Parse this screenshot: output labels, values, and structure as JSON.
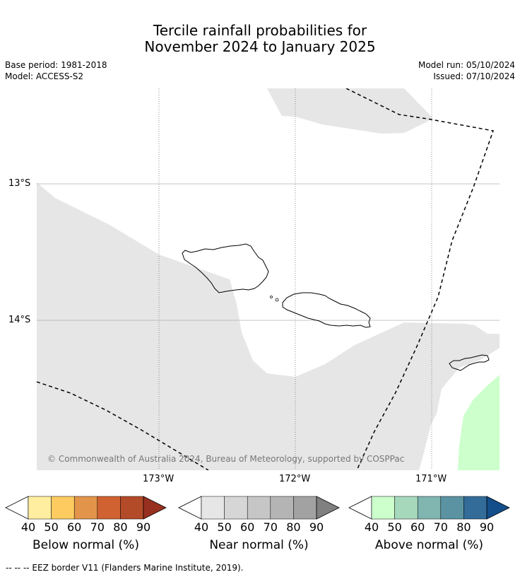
{
  "title": {
    "line1": "Tercile rainfall probabilities for",
    "line2": "November 2024 to January 2025"
  },
  "meta": {
    "base_period": "Base period: 1981-2018",
    "model": "Model: ACCESS-S2",
    "model_run": "Model run: 05/10/2024",
    "issued": "Issued: 07/10/2024"
  },
  "map": {
    "lat_labels": [
      "13°S",
      "14°S"
    ],
    "lon_labels": [
      "173°W",
      "172°W",
      "171°W"
    ],
    "copyright": "© Commonwealth of Australia 2024, Bureau of Meteorology, supported by COSPPac",
    "colors": {
      "near_normal_fill": "#e6e6e6",
      "above_normal_fill": "#ccffcc",
      "land_outline": "#000000"
    }
  },
  "colorbars": [
    {
      "label": "Below normal (%)",
      "ticks": [
        "40",
        "50",
        "60",
        "70",
        "80",
        "90"
      ],
      "colors": [
        "#ffeea0",
        "#fdcb60",
        "#e2944a",
        "#cf6230",
        "#b34a28",
        "#983020"
      ]
    },
    {
      "label": "Near normal (%)",
      "ticks": [
        "40",
        "50",
        "60",
        "70",
        "80",
        "90"
      ],
      "colors": [
        "#e6e6e6",
        "#d6d6d6",
        "#c6c6c6",
        "#b4b4b4",
        "#a2a2a2",
        "#808080"
      ]
    },
    {
      "label": "Above normal (%)",
      "ticks": [
        "40",
        "50",
        "60",
        "70",
        "80",
        "90"
      ],
      "colors": [
        "#ccffcc",
        "#a6d8bc",
        "#80b5b0",
        "#5b93a2",
        "#336c98",
        "#134e8a"
      ]
    }
  ],
  "footer": "--  --  -- EEZ border V11 (Flanders Marine Institute, 2019)."
}
